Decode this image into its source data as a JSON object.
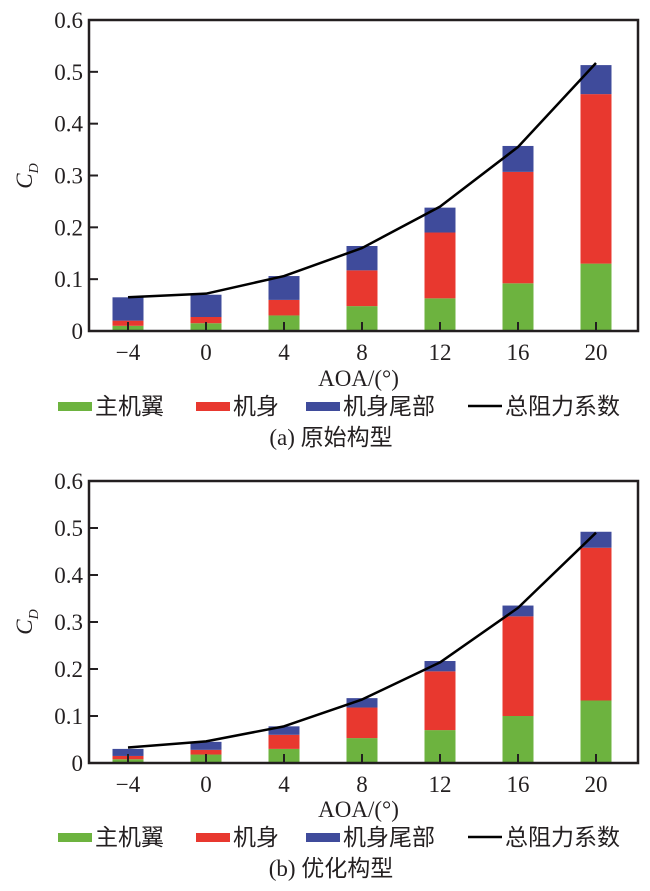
{
  "colors": {
    "main_wing": "#6db33f",
    "fuselage": "#e8382f",
    "tail": "#3f4b9b",
    "total_line": "#000000",
    "axis": "#231f20"
  },
  "chart_data": [
    {
      "type": "bar",
      "stacked": true,
      "caption": "(a) 原始构型",
      "xlabel": "AOA/(°)",
      "ylabel_main": "C",
      "ylabel_sub": "D",
      "categories": [
        "−4",
        "0",
        "4",
        "8",
        "12",
        "16",
        "20"
      ],
      "x": [
        -4,
        0,
        4,
        8,
        12,
        16,
        20
      ],
      "ylim": [
        0,
        0.6
      ],
      "yticks": [
        "0",
        "0.1",
        "0.2",
        "0.3",
        "0.4",
        "0.5",
        "0.6"
      ],
      "ytick_values": [
        0,
        0.1,
        0.2,
        0.3,
        0.4,
        0.5,
        0.6
      ],
      "grid": false,
      "legend_position": "bottom",
      "series": [
        {
          "name": "主机翼",
          "kind": "bar",
          "color_key": "main_wing",
          "values": [
            0.01,
            0.015,
            0.03,
            0.048,
            0.063,
            0.092,
            0.13
          ]
        },
        {
          "name": "机身",
          "kind": "bar",
          "color_key": "fuselage",
          "values": [
            0.01,
            0.012,
            0.03,
            0.069,
            0.127,
            0.215,
            0.327
          ]
        },
        {
          "name": "机身尾部",
          "kind": "bar",
          "color_key": "tail",
          "values": [
            0.045,
            0.043,
            0.046,
            0.047,
            0.048,
            0.05,
            0.056
          ]
        },
        {
          "name": "总阻力系数",
          "kind": "line",
          "color_key": "total_line",
          "values": [
            0.065,
            0.072,
            0.106,
            0.16,
            0.24,
            0.355,
            0.517
          ]
        }
      ]
    },
    {
      "type": "bar",
      "stacked": true,
      "caption": "(b) 优化构型",
      "xlabel": "AOA/(°)",
      "ylabel_main": "C",
      "ylabel_sub": "D",
      "categories": [
        "−4",
        "0",
        "4",
        "8",
        "12",
        "16",
        "20"
      ],
      "x": [
        -4,
        0,
        4,
        8,
        12,
        16,
        20
      ],
      "ylim": [
        0,
        0.6
      ],
      "yticks": [
        "0",
        "0.1",
        "0.2",
        "0.3",
        "0.4",
        "0.5",
        "0.6"
      ],
      "ytick_values": [
        0,
        0.1,
        0.2,
        0.3,
        0.4,
        0.5,
        0.6
      ],
      "grid": false,
      "legend_position": "bottom",
      "series": [
        {
          "name": "主机翼",
          "kind": "bar",
          "color_key": "main_wing",
          "values": [
            0.008,
            0.018,
            0.03,
            0.053,
            0.07,
            0.1,
            0.133
          ]
        },
        {
          "name": "机身",
          "kind": "bar",
          "color_key": "fuselage",
          "values": [
            0.007,
            0.01,
            0.03,
            0.065,
            0.125,
            0.212,
            0.325
          ]
        },
        {
          "name": "机身尾部",
          "kind": "bar",
          "color_key": "tail",
          "values": [
            0.015,
            0.017,
            0.018,
            0.02,
            0.022,
            0.023,
            0.034
          ]
        },
        {
          "name": "总阻力系数",
          "kind": "line",
          "color_key": "total_line",
          "values": [
            0.033,
            0.046,
            0.078,
            0.135,
            0.214,
            0.33,
            0.49
          ]
        }
      ]
    }
  ]
}
